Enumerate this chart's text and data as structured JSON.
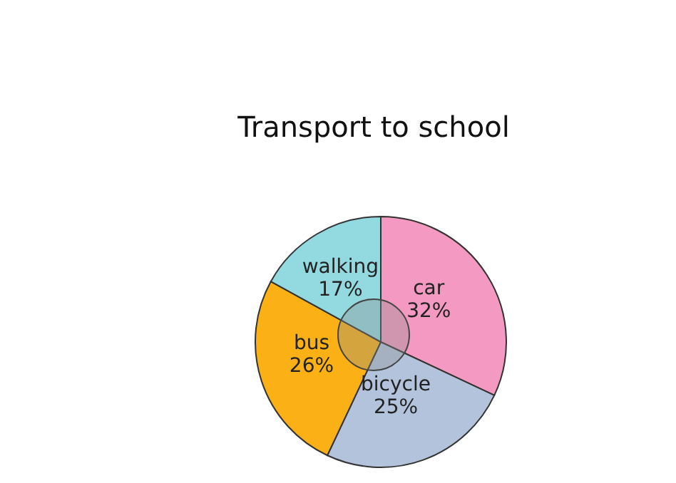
{
  "chart_data": {
    "type": "pie",
    "title": "Transport to school",
    "categories": [
      "car",
      "bicycle",
      "bus",
      "walking"
    ],
    "values": [
      32,
      25,
      26,
      17
    ],
    "value_labels": [
      "32%",
      "25%",
      "26%",
      "17%"
    ],
    "colors": [
      "#f49ac2",
      "#b3c3dc",
      "#fbb116",
      "#93d9e0"
    ]
  }
}
